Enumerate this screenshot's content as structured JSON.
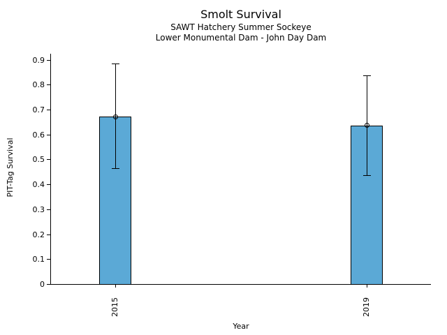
{
  "chart_data": {
    "type": "bar",
    "title": "Smolt Survival",
    "subtitles": [
      "SAWT Hatchery Summer Sockeye",
      "Lower Monumental Dam - John Day Dam"
    ],
    "xlabel": "Year",
    "ylabel": "PIT-Tag Survival",
    "categories": [
      "2015",
      "2019"
    ],
    "values": [
      0.671,
      0.637
    ],
    "error_low": [
      0.465,
      0.437
    ],
    "error_high": [
      0.885,
      0.836
    ],
    "yticks": [
      0,
      0.1,
      0.2,
      0.3,
      0.4,
      0.5,
      0.6,
      0.7,
      0.8,
      0.9
    ],
    "ytick_labels": [
      "0",
      "0.1",
      "0.2",
      "0.3",
      "0.4",
      "0.5",
      "0.6",
      "0.7",
      "0.8",
      "0.9"
    ],
    "ylim": [
      0,
      0.924
    ],
    "xtick_rotation_deg": 90,
    "grid": false,
    "legend": false,
    "marker": "open-circle",
    "bar_color": "#5BA9D6",
    "bar_edge_color": "#000000",
    "error_color": "#000000",
    "background_color": "#FFFFFF"
  }
}
